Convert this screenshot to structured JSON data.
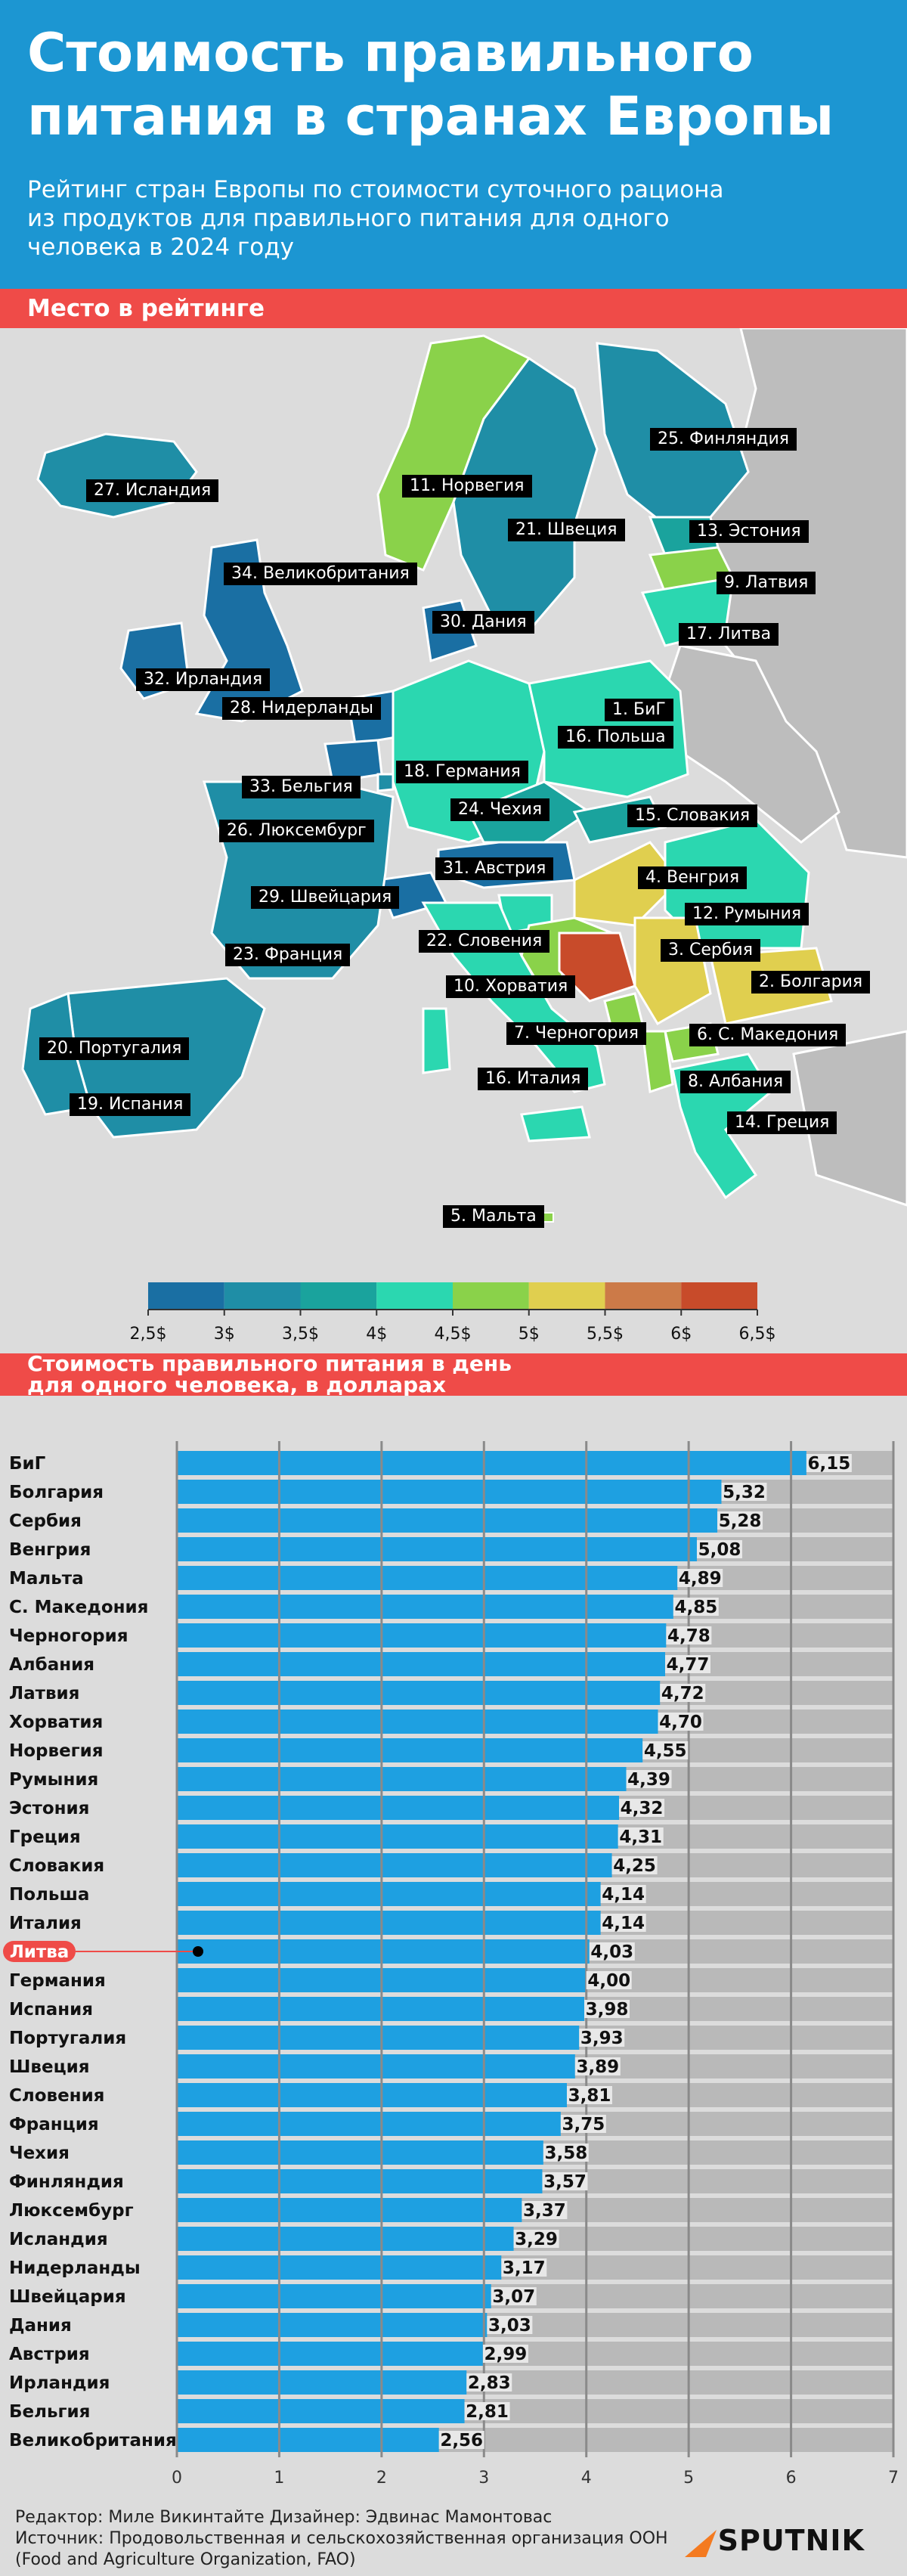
{
  "header": {
    "title": "Стоимость правильного питания в странах Европы",
    "subtitle": "Рейтинг стран Европы по стоимости суточного рациона из продуктов для правильного питания для одного человека в 2024 году"
  },
  "map_section": {
    "heading": "Место в рейтинге",
    "legend_ticks": [
      "2,5$",
      "3$",
      "3,5$",
      "4$",
      "4,5$",
      "5$",
      "5,5$",
      "6$",
      "6,5$"
    ],
    "legend_colors": [
      "#1a6fa3",
      "#1f8ea6",
      "#1aa39d",
      "#2bd7b0",
      "#8ad24a",
      "#e0cf4f",
      "#cc7a48",
      "#c84b2a"
    ],
    "country_labels": [
      "1. БиГ",
      "2. Болгария",
      "3. Сербия",
      "4. Венгрия",
      "5. Мальта",
      "6. С. Македония",
      "7. Черногория",
      "8. Албания",
      "9. Латвия",
      "10. Хорватия",
      "11. Норвегия",
      "12. Румыния",
      "13. Эстония",
      "14. Греция",
      "15. Словакия",
      "16. Польша",
      "16. Италия",
      "17. Литва",
      "18. Германия",
      "19. Испания",
      "20. Португалия",
      "21. Швеция",
      "22. Словения",
      "23. Франция",
      "24. Чехия",
      "25. Финляндия",
      "26. Люксембург",
      "27. Исландия",
      "28. Нидерланды",
      "29. Швейцария",
      "30. Дания",
      "31. Австрия",
      "32. Ирландия",
      "33. Бельгия",
      "34. Великобритания"
    ]
  },
  "chart_section": {
    "heading_line1": "Стоимость правильного питания в день",
    "heading_line2": "для одного человека, в долларах"
  },
  "chart_data": {
    "type": "bar",
    "orientation": "horizontal",
    "categories": [
      "БиГ",
      "Болгария",
      "Сербия",
      "Венгрия",
      "Мальта",
      "С. Македония",
      "Черногория",
      "Албания",
      "Латвия",
      "Хорватия",
      "Норвегия",
      "Румыния",
      "Эстония",
      "Греция",
      "Словакия",
      "Польша",
      "Италия",
      "Литва",
      "Германия",
      "Испания",
      "Португалия",
      "Швеция",
      "Словения",
      "Франция",
      "Чехия",
      "Финляндия",
      "Люксембург",
      "Исландия",
      "Нидерланды",
      "Швейцария",
      "Дания",
      "Австрия",
      "Ирландия",
      "Бельгия",
      "Великобритания"
    ],
    "values": [
      6.15,
      5.32,
      5.28,
      5.08,
      4.89,
      4.85,
      4.78,
      4.77,
      4.72,
      4.7,
      4.55,
      4.39,
      4.32,
      4.31,
      4.25,
      4.14,
      4.14,
      4.03,
      4.0,
      3.98,
      3.93,
      3.89,
      3.81,
      3.75,
      3.58,
      3.57,
      3.37,
      3.29,
      3.17,
      3.07,
      3.03,
      2.99,
      2.83,
      2.81,
      2.56
    ],
    "value_labels": [
      "6,15",
      "5,32",
      "5,28",
      "5,08",
      "4,89",
      "4,85",
      "4,78",
      "4,77",
      "4,72",
      "4,70",
      "4,55",
      "4,39",
      "4,32",
      "4,31",
      "4,25",
      "4,14",
      "4,14",
      "4,03",
      "4,00",
      "3,98",
      "3,93",
      "3,89",
      "3,81",
      "3,75",
      "3,58",
      "3,57",
      "3,37",
      "3,29",
      "3,17",
      "3,07",
      "3,03",
      "2,99",
      "2,83",
      "2,81",
      "2,56"
    ],
    "xlim": [
      0,
      7
    ],
    "xticks": [
      "0",
      "1",
      "2",
      "3",
      "4",
      "5",
      "6",
      "7"
    ],
    "highlight_category": "Литва",
    "bar_color": "#1ea0e1",
    "track_color": "#b9b9b9",
    "highlight_color": "#ef4b48",
    "grid": true
  },
  "footer": {
    "credits": "Редактор: Миле Викинтайте  Дизайнер: Эдвинас Мамонтовас",
    "source": "Источник: Продовольственная и сельскохозяйственная организация ООН (Food and Agriculture Organization, FAO)",
    "logo": "SPUTNIK"
  }
}
